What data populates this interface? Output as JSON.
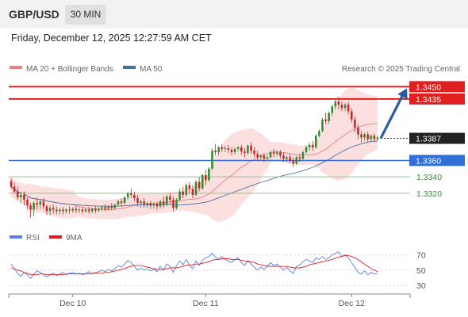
{
  "header": {
    "pair": "GBP/USD",
    "timeframe": "30 MIN"
  },
  "datetime": "Friday, December 12, 2025 12:27:59 AM CET",
  "legend": {
    "ma20": "MA 20 + Bollinger Bands",
    "ma50": "MA 50",
    "credit": "Research © 2025 Trading Central",
    "rsi": "RSI",
    "ma9": "9MA"
  },
  "colors": {
    "up": "#2e8b2e",
    "down": "#c62828",
    "resistance": "#e02020",
    "support": "#2f6fd6",
    "pivot": "#222222",
    "target": "#3a8a3a",
    "ma20": "#f08080",
    "ma50": "#4a6fa5",
    "band": "#fbd9d9",
    "rsi": "#5b7fde",
    "ma9": "#e02020",
    "arrow": "#2a5aa0"
  },
  "chart_data": [
    {
      "type": "candlestick",
      "title": "",
      "price_range": [
        1.3285,
        1.3462
      ],
      "x_ticks": [
        "Dec 10",
        "Dec 11",
        "Dec 12"
      ],
      "levels": [
        {
          "label": "1.3450",
          "value": 1.345,
          "kind": "resistance"
        },
        {
          "label": "1.3435",
          "value": 1.3435,
          "kind": "resistance"
        },
        {
          "label": "1.3387",
          "value": 1.3387,
          "kind": "pivot"
        },
        {
          "label": "1.3360",
          "value": 1.336,
          "kind": "support"
        },
        {
          "label": "1.3340",
          "value": 1.334,
          "kind": "target"
        },
        {
          "label": "1.3320",
          "value": 1.332,
          "kind": "target"
        }
      ],
      "forecast_arrow": {
        "from": 1.3387,
        "to": 1.3448
      },
      "candles": [
        [
          1.3335,
          1.3338,
          1.3328,
          1.3325
        ],
        [
          1.3328,
          1.3333,
          1.3322,
          1.332
        ],
        [
          1.3322,
          1.3328,
          1.3315,
          1.3312
        ],
        [
          1.3315,
          1.332,
          1.3318,
          1.3308
        ],
        [
          1.3318,
          1.3322,
          1.3312,
          1.3305
        ],
        [
          1.3312,
          1.3315,
          1.3305,
          1.33
        ],
        [
          1.3305,
          1.3308,
          1.33,
          1.329
        ],
        [
          1.33,
          1.331,
          1.3308,
          1.3292
        ],
        [
          1.3308,
          1.3315,
          1.3306,
          1.33
        ],
        [
          1.3306,
          1.3312,
          1.331,
          1.33
        ],
        [
          1.331,
          1.3314,
          1.3304,
          1.33
        ],
        [
          1.3304,
          1.3306,
          1.3298,
          1.3294
        ],
        [
          1.3298,
          1.3305,
          1.3302,
          1.3293
        ],
        [
          1.3302,
          1.3306,
          1.33,
          1.3295
        ],
        [
          1.33,
          1.3304,
          1.3298,
          1.3294
        ],
        [
          1.3298,
          1.3302,
          1.33,
          1.3294
        ],
        [
          1.33,
          1.3303,
          1.3298,
          1.3294
        ],
        [
          1.3298,
          1.3302,
          1.33,
          1.3295
        ],
        [
          1.33,
          1.3304,
          1.3299,
          1.3295
        ],
        [
          1.3299,
          1.3303,
          1.3301,
          1.3296
        ],
        [
          1.3301,
          1.3304,
          1.3299,
          1.3296
        ],
        [
          1.3299,
          1.3302,
          1.33,
          1.3296
        ],
        [
          1.33,
          1.3303,
          1.3298,
          1.3295
        ],
        [
          1.3298,
          1.3302,
          1.33,
          1.3296
        ],
        [
          1.33,
          1.3304,
          1.3298,
          1.3295
        ],
        [
          1.3298,
          1.3302,
          1.3301,
          1.3296
        ],
        [
          1.3301,
          1.3304,
          1.3299,
          1.3296
        ],
        [
          1.3299,
          1.3303,
          1.3301,
          1.3297
        ],
        [
          1.3301,
          1.3305,
          1.3303,
          1.3298
        ],
        [
          1.3303,
          1.3306,
          1.3301,
          1.3298
        ],
        [
          1.3301,
          1.3305,
          1.3304,
          1.3299
        ],
        [
          1.3304,
          1.3308,
          1.3302,
          1.3299
        ],
        [
          1.3302,
          1.3307,
          1.3306,
          1.33
        ],
        [
          1.3306,
          1.3312,
          1.331,
          1.3304
        ],
        [
          1.331,
          1.3314,
          1.3308,
          1.3304
        ],
        [
          1.3308,
          1.3316,
          1.3315,
          1.3306
        ],
        [
          1.3315,
          1.3322,
          1.332,
          1.3312
        ],
        [
          1.332,
          1.3326,
          1.3318,
          1.3314
        ],
        [
          1.3318,
          1.3322,
          1.3314,
          1.331
        ],
        [
          1.3314,
          1.3318,
          1.3308,
          1.3304
        ],
        [
          1.3308,
          1.3312,
          1.331,
          1.3302
        ],
        [
          1.331,
          1.3314,
          1.3306,
          1.3302
        ],
        [
          1.3306,
          1.331,
          1.3308,
          1.3302
        ],
        [
          1.3308,
          1.3311,
          1.3305,
          1.3301
        ],
        [
          1.3305,
          1.3309,
          1.3307,
          1.3301
        ],
        [
          1.3307,
          1.331,
          1.3304,
          1.33
        ],
        [
          1.3304,
          1.3312,
          1.331,
          1.3301
        ],
        [
          1.331,
          1.3316,
          1.3306,
          1.3302
        ],
        [
          1.3306,
          1.3318,
          1.3316,
          1.3304
        ],
        [
          1.3316,
          1.332,
          1.3312,
          1.3307
        ],
        [
          1.3312,
          1.3316,
          1.3302,
          1.3298
        ],
        [
          1.3302,
          1.3314,
          1.3312,
          1.33
        ],
        [
          1.3312,
          1.3326,
          1.3322,
          1.331
        ],
        [
          1.3322,
          1.3328,
          1.3318,
          1.3314
        ],
        [
          1.3318,
          1.3332,
          1.333,
          1.3316
        ],
        [
          1.333,
          1.3334,
          1.3325,
          1.332
        ],
        [
          1.3325,
          1.333,
          1.3318,
          1.3314
        ],
        [
          1.3318,
          1.3336,
          1.3334,
          1.3316
        ],
        [
          1.3334,
          1.334,
          1.3326,
          1.3322
        ],
        [
          1.3326,
          1.3344,
          1.3342,
          1.3324
        ],
        [
          1.3342,
          1.3348,
          1.3336,
          1.333
        ],
        [
          1.3336,
          1.3352,
          1.335,
          1.3334
        ],
        [
          1.335,
          1.3375,
          1.3372,
          1.3348
        ],
        [
          1.3372,
          1.338,
          1.337,
          1.3366
        ],
        [
          1.337,
          1.3378,
          1.3376,
          1.3366
        ],
        [
          1.3376,
          1.338,
          1.3374,
          1.337
        ],
        [
          1.3374,
          1.3378,
          1.3375,
          1.337
        ],
        [
          1.3375,
          1.3379,
          1.3373,
          1.3369
        ],
        [
          1.3373,
          1.3376,
          1.337,
          1.3366
        ],
        [
          1.337,
          1.3376,
          1.3374,
          1.3367
        ],
        [
          1.3374,
          1.3378,
          1.3376,
          1.3371
        ],
        [
          1.3376,
          1.3379,
          1.3371,
          1.3367
        ],
        [
          1.3371,
          1.3375,
          1.3369,
          1.3364
        ],
        [
          1.3369,
          1.338,
          1.3378,
          1.3367
        ],
        [
          1.3378,
          1.3382,
          1.3372,
          1.3368
        ],
        [
          1.3372,
          1.3376,
          1.3368,
          1.3364
        ],
        [
          1.3368,
          1.3372,
          1.3364,
          1.336
        ],
        [
          1.3364,
          1.3368,
          1.3366,
          1.336
        ],
        [
          1.3366,
          1.3369,
          1.3362,
          1.3358
        ],
        [
          1.3362,
          1.3366,
          1.3364,
          1.336
        ],
        [
          1.3364,
          1.3372,
          1.337,
          1.3362
        ],
        [
          1.337,
          1.3374,
          1.3368,
          1.3364
        ],
        [
          1.3368,
          1.3372,
          1.337,
          1.3365
        ],
        [
          1.337,
          1.3373,
          1.3366,
          1.3362
        ],
        [
          1.3366,
          1.337,
          1.3362,
          1.3358
        ],
        [
          1.3362,
          1.3366,
          1.3364,
          1.3358
        ],
        [
          1.3364,
          1.3368,
          1.336,
          1.3356
        ],
        [
          1.336,
          1.3364,
          1.3356,
          1.3352
        ],
        [
          1.3356,
          1.3366,
          1.3364,
          1.3354
        ],
        [
          1.3364,
          1.3368,
          1.3362,
          1.3358
        ],
        [
          1.3362,
          1.3372,
          1.337,
          1.336
        ],
        [
          1.337,
          1.3378,
          1.3376,
          1.3368
        ],
        [
          1.3376,
          1.3382,
          1.3379,
          1.3372
        ],
        [
          1.3379,
          1.3384,
          1.3376,
          1.3372
        ],
        [
          1.3376,
          1.3392,
          1.339,
          1.3374
        ],
        [
          1.339,
          1.3398,
          1.3396,
          1.3388
        ],
        [
          1.3396,
          1.3412,
          1.341,
          1.3394
        ],
        [
          1.341,
          1.3418,
          1.3408,
          1.3404
        ],
        [
          1.3408,
          1.342,
          1.3418,
          1.3405
        ],
        [
          1.3418,
          1.3428,
          1.3426,
          1.3414
        ],
        [
          1.3426,
          1.3434,
          1.3432,
          1.3422
        ],
        [
          1.3432,
          1.3438,
          1.3428,
          1.3422
        ],
        [
          1.3428,
          1.3432,
          1.3424,
          1.342
        ],
        [
          1.3424,
          1.343,
          1.3428,
          1.342
        ],
        [
          1.3428,
          1.3432,
          1.342,
          1.3416
        ],
        [
          1.342,
          1.3424,
          1.341,
          1.3406
        ],
        [
          1.341,
          1.3414,
          1.34,
          1.3394
        ],
        [
          1.34,
          1.3404,
          1.3392,
          1.3386
        ],
        [
          1.3392,
          1.3396,
          1.3388,
          1.3382
        ],
        [
          1.3388,
          1.3394,
          1.3392,
          1.3384
        ],
        [
          1.3392,
          1.3395,
          1.3386,
          1.3382
        ],
        [
          1.3386,
          1.3392,
          1.339,
          1.3383
        ],
        [
          1.339,
          1.3393,
          1.3386,
          1.3383
        ],
        [
          1.3386,
          1.339,
          1.3388,
          1.3384
        ]
      ]
    },
    {
      "type": "line",
      "title": "RSI",
      "y_ticks": [
        70,
        50,
        30
      ],
      "ylim": [
        25,
        80
      ],
      "series": [
        {
          "name": "RSI",
          "values": [
            58,
            52,
            46,
            42,
            47,
            44,
            39,
            45,
            49,
            47,
            44,
            41,
            44,
            46,
            43,
            45,
            47,
            44,
            46,
            47,
            45,
            46,
            44,
            46,
            48,
            45,
            47,
            48,
            50,
            48,
            51,
            49,
            52,
            56,
            54,
            58,
            63,
            60,
            55,
            50,
            53,
            50,
            52,
            49,
            51,
            48,
            55,
            50,
            58,
            55,
            47,
            56,
            62,
            57,
            64,
            56,
            52,
            62,
            56,
            63,
            66,
            68,
            72,
            67,
            64,
            68,
            64,
            62,
            60,
            64,
            66,
            60,
            56,
            63,
            58,
            54,
            50,
            54,
            51,
            55,
            60,
            56,
            58,
            54,
            50,
            54,
            49,
            46,
            55,
            57,
            61,
            64,
            62,
            60,
            66,
            64,
            68,
            64,
            66,
            70,
            72,
            74,
            68,
            70,
            66,
            60,
            54,
            47,
            45,
            49,
            44,
            47,
            45,
            46
          ]
        },
        {
          "name": "9MA",
          "values": [
            53,
            52,
            50,
            49,
            47,
            46,
            44,
            44,
            44,
            45,
            45,
            44,
            44,
            44,
            44,
            44,
            44,
            45,
            45,
            45,
            45,
            45,
            45,
            45,
            45,
            46,
            46,
            46,
            46,
            47,
            47,
            48,
            49,
            50,
            51,
            52,
            54,
            55,
            56,
            56,
            56,
            55,
            54,
            53,
            52,
            51,
            51,
            51,
            52,
            53,
            53,
            53,
            54,
            55,
            56,
            57,
            57,
            58,
            58,
            59,
            60,
            61,
            63,
            64,
            64,
            65,
            65,
            65,
            64,
            64,
            64,
            63,
            62,
            61,
            61,
            60,
            58,
            57,
            56,
            55,
            55,
            55,
            55,
            55,
            55,
            55,
            54,
            53,
            53,
            53,
            54,
            55,
            57,
            58,
            59,
            60,
            61,
            62,
            63,
            64,
            66,
            67,
            68,
            69,
            69,
            68,
            66,
            64,
            61,
            58,
            55,
            52,
            50,
            48
          ]
        }
      ]
    }
  ]
}
